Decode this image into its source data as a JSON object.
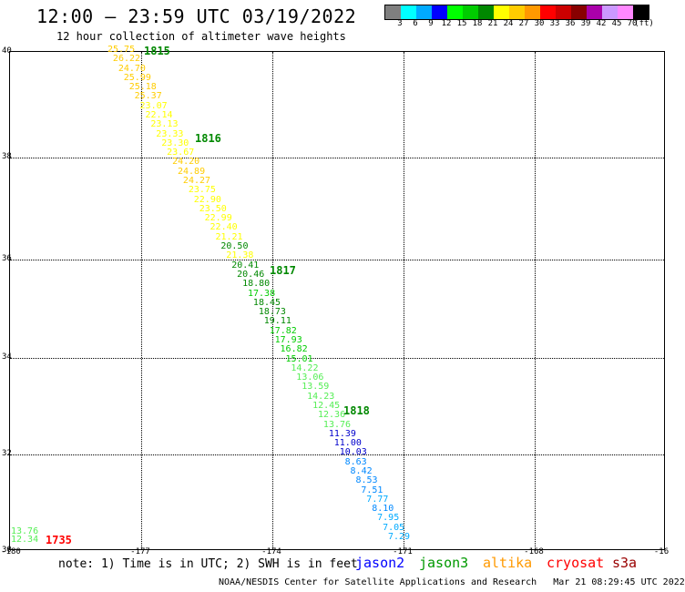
{
  "header": {
    "title": "12:00 – 23:59 UTC 03/19/2022",
    "subtitle": "12 hour collection of altimeter wave heights"
  },
  "colorbar": {
    "colors": [
      "#7f7f7f",
      "#00ffff",
      "#00aaff",
      "#0000ff",
      "#00ff00",
      "#00cc00",
      "#008800",
      "#ffff00",
      "#ffcc00",
      "#ff9900",
      "#ff0000",
      "#cc0000",
      "#880000",
      "#aa00aa",
      "#cc99ff",
      "#ff88ff",
      "#000000"
    ],
    "labels": [
      "3",
      "6",
      "9",
      "12",
      "15",
      "18",
      "21",
      "24",
      "27",
      "30",
      "33",
      "36",
      "39",
      "42",
      "45",
      "70",
      "(ft)"
    ]
  },
  "map": {
    "lat_labels": [
      "40",
      "38",
      "36",
      "34",
      "32",
      "30"
    ],
    "lon_labels": [
      "-180",
      "-177",
      "-174",
      "-171",
      "-168",
      "-16"
    ]
  },
  "observations": [
    {
      "v": "25.75",
      "c": "#ffcc00"
    },
    {
      "v": "26.22",
      "c": "#ffcc00"
    },
    {
      "v": "24.70",
      "c": "#ffcc00"
    },
    {
      "v": "25.99",
      "c": "#ffcc00"
    },
    {
      "v": "25.18",
      "c": "#ffcc00"
    },
    {
      "v": "25.37",
      "c": "#ffcc00"
    },
    {
      "v": "23.07",
      "c": "#ffff00"
    },
    {
      "v": "22.14",
      "c": "#ffff00"
    },
    {
      "v": "23.13",
      "c": "#ffff00"
    },
    {
      "v": "23.33",
      "c": "#ffff00"
    },
    {
      "v": "23.30",
      "c": "#ffff00"
    },
    {
      "v": "23.67",
      "c": "#ffff00"
    },
    {
      "v": "24.20",
      "c": "#ffcc00"
    },
    {
      "v": "24.89",
      "c": "#ffcc00"
    },
    {
      "v": "24.27",
      "c": "#ffcc00"
    },
    {
      "v": "23.75",
      "c": "#ffff00"
    },
    {
      "v": "22.90",
      "c": "#ffff00"
    },
    {
      "v": "23.50",
      "c": "#ffff00"
    },
    {
      "v": "22.99",
      "c": "#ffff00"
    },
    {
      "v": "22.40",
      "c": "#ffff00"
    },
    {
      "v": "21.21",
      "c": "#ffff00"
    },
    {
      "v": "20.50",
      "c": "#008800"
    },
    {
      "v": "21.38",
      "c": "#ffff00"
    },
    {
      "v": "20.41",
      "c": "#008800"
    },
    {
      "v": "20.46",
      "c": "#008800"
    },
    {
      "v": "18.80",
      "c": "#008800"
    },
    {
      "v": "17.38",
      "c": "#00cc00"
    },
    {
      "v": "18.45",
      "c": "#008800"
    },
    {
      "v": "18.73",
      "c": "#008800"
    },
    {
      "v": "19.11",
      "c": "#008800"
    },
    {
      "v": "17.82",
      "c": "#00cc00"
    },
    {
      "v": "17.93",
      "c": "#00cc00"
    },
    {
      "v": "16.82",
      "c": "#00cc00"
    },
    {
      "v": "15.01",
      "c": "#00cc00"
    },
    {
      "v": "14.22",
      "c": "#55ee55"
    },
    {
      "v": "13.06",
      "c": "#55ee55"
    },
    {
      "v": "13.59",
      "c": "#55ee55"
    },
    {
      "v": "14.23",
      "c": "#55ee55"
    },
    {
      "v": "12.45",
      "c": "#55ee55"
    },
    {
      "v": "12.36",
      "c": "#55ee55"
    },
    {
      "v": "13.76",
      "c": "#55ee55"
    },
    {
      "v": "11.39",
      "c": "#0000cc"
    },
    {
      "v": "11.00",
      "c": "#0000cc"
    },
    {
      "v": "10.03",
      "c": "#0000cc"
    },
    {
      "v": "8.63",
      "c": "#0088ff"
    },
    {
      "v": "8.42",
      "c": "#0088ff"
    },
    {
      "v": "8.53",
      "c": "#0088ff"
    },
    {
      "v": "7.51",
      "c": "#0088ff"
    },
    {
      "v": "7.77",
      "c": "#00aaff"
    },
    {
      "v": "8.10",
      "c": "#0088ff"
    },
    {
      "v": "7.95",
      "c": "#00aaff"
    },
    {
      "v": "7.05",
      "c": "#00aaff"
    },
    {
      "v": "7.29",
      "c": "#00aaff"
    }
  ],
  "corner_observations": [
    {
      "v": "13.76",
      "c": "#55ee55"
    },
    {
      "v": "12.34",
      "c": "#55ee55"
    }
  ],
  "time_labels": [
    {
      "t": "1815",
      "c": "#008800"
    },
    {
      "t": "1816",
      "c": "#008800"
    },
    {
      "t": "1817",
      "c": "#008800"
    },
    {
      "t": "1818",
      "c": "#008800"
    },
    {
      "t": "1735",
      "c": "#ff0000"
    }
  ],
  "footer": {
    "note": "note: 1) Time is in UTC; 2) SWH is in feet",
    "satellites": [
      {
        "name": "jason2",
        "color": "#0000ff"
      },
      {
        "name": "jason3",
        "color": "#009900"
      },
      {
        "name": "altika",
        "color": "#ff9900"
      },
      {
        "name": "cryosat",
        "color": "#ff0000"
      },
      {
        "name": "s3a",
        "color": "#990000"
      }
    ],
    "credit": "NOAA/NESDIS Center for Satellite Applications and Research",
    "timestamp": "Mar 21 08:29:45 UTC 2022"
  }
}
